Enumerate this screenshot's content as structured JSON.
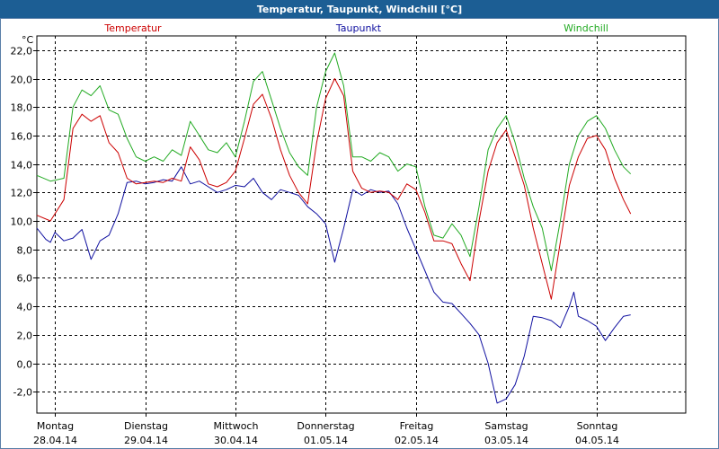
{
  "title": "Temperatur, Taupunkt, Windchill [°C]",
  "chart_data": {
    "type": "line",
    "title": "Temperatur, Taupunkt, Windchill [°C]",
    "ylabel": "°C",
    "ylim": [
      -3.5,
      23
    ],
    "yticks": [
      -2,
      0,
      2,
      4,
      6,
      8,
      10,
      12,
      14,
      16,
      18,
      20,
      22
    ],
    "ytick_labels": [
      "-2,0",
      "0,0",
      "2,0",
      "4,0",
      "6,0",
      "8,0",
      "10,0",
      "12,0",
      "14,0",
      "16,0",
      "18,0",
      "20,0",
      "22,0"
    ],
    "xlim": [
      -0.2,
      6.99
    ],
    "days": [
      {
        "weekday": "Montag",
        "date": "28.04.14",
        "x": 0
      },
      {
        "weekday": "Dienstag",
        "date": "29.04.14",
        "x": 1
      },
      {
        "weekday": "Mittwoch",
        "date": "30.04.14",
        "x": 2
      },
      {
        "weekday": "Donnerstag",
        "date": "01.05.14",
        "x": 3
      },
      {
        "weekday": "Freitag",
        "date": "02.05.14",
        "x": 4
      },
      {
        "weekday": "Samstag",
        "date": "03.05.14",
        "x": 5
      },
      {
        "weekday": "Sonntag",
        "date": "04.05.14",
        "x": 6
      }
    ],
    "series": [
      {
        "name": "Temperatur",
        "color": "#cc0000",
        "points": [
          [
            -0.2,
            10.4
          ],
          [
            -0.05,
            10.0
          ],
          [
            0.1,
            11.5
          ],
          [
            0.2,
            16.5
          ],
          [
            0.3,
            17.5
          ],
          [
            0.4,
            17.0
          ],
          [
            0.5,
            17.4
          ],
          [
            0.6,
            15.5
          ],
          [
            0.7,
            14.8
          ],
          [
            0.8,
            13.0
          ],
          [
            0.9,
            12.6
          ],
          [
            1.0,
            12.7
          ],
          [
            1.1,
            12.8
          ],
          [
            1.2,
            12.7
          ],
          [
            1.3,
            13.0
          ],
          [
            1.4,
            12.8
          ],
          [
            1.5,
            15.2
          ],
          [
            1.6,
            14.3
          ],
          [
            1.7,
            12.6
          ],
          [
            1.8,
            12.4
          ],
          [
            1.9,
            12.7
          ],
          [
            2.0,
            13.5
          ],
          [
            2.1,
            15.8
          ],
          [
            2.2,
            18.2
          ],
          [
            2.3,
            18.9
          ],
          [
            2.4,
            17.2
          ],
          [
            2.5,
            15.0
          ],
          [
            2.6,
            13.2
          ],
          [
            2.7,
            12.0
          ],
          [
            2.8,
            11.2
          ],
          [
            2.9,
            15.5
          ],
          [
            3.0,
            18.6
          ],
          [
            3.1,
            20.0
          ],
          [
            3.2,
            18.8
          ],
          [
            3.3,
            13.5
          ],
          [
            3.4,
            12.3
          ],
          [
            3.5,
            12.0
          ],
          [
            3.6,
            12.1
          ],
          [
            3.7,
            12.0
          ],
          [
            3.8,
            11.5
          ],
          [
            3.9,
            12.6
          ],
          [
            4.0,
            12.2
          ],
          [
            4.1,
            10.6
          ],
          [
            4.2,
            8.6
          ],
          [
            4.3,
            8.6
          ],
          [
            4.4,
            8.4
          ],
          [
            4.5,
            7.0
          ],
          [
            4.6,
            5.8
          ],
          [
            4.7,
            10.0
          ],
          [
            4.8,
            13.5
          ],
          [
            4.9,
            15.5
          ],
          [
            5.0,
            16.4
          ],
          [
            5.1,
            14.5
          ],
          [
            5.2,
            12.5
          ],
          [
            5.3,
            9.5
          ],
          [
            5.4,
            7.0
          ],
          [
            5.5,
            4.5
          ],
          [
            5.6,
            8.5
          ],
          [
            5.7,
            12.5
          ],
          [
            5.8,
            14.5
          ],
          [
            5.9,
            15.8
          ],
          [
            6.0,
            16.0
          ],
          [
            6.1,
            15.0
          ],
          [
            6.2,
            13.0
          ],
          [
            6.3,
            11.5
          ],
          [
            6.38,
            10.5
          ]
        ]
      },
      {
        "name": "Taupunkt",
        "color": "#1010a0",
        "points": [
          [
            -0.2,
            9.5
          ],
          [
            -0.1,
            8.7
          ],
          [
            -0.05,
            8.5
          ],
          [
            0.0,
            9.2
          ],
          [
            0.1,
            8.6
          ],
          [
            0.2,
            8.8
          ],
          [
            0.3,
            9.4
          ],
          [
            0.4,
            7.3
          ],
          [
            0.5,
            8.6
          ],
          [
            0.6,
            9.0
          ],
          [
            0.7,
            10.5
          ],
          [
            0.8,
            12.7
          ],
          [
            0.9,
            12.8
          ],
          [
            1.0,
            12.6
          ],
          [
            1.1,
            12.7
          ],
          [
            1.2,
            12.9
          ],
          [
            1.3,
            12.8
          ],
          [
            1.4,
            13.8
          ],
          [
            1.5,
            12.6
          ],
          [
            1.6,
            12.8
          ],
          [
            1.7,
            12.4
          ],
          [
            1.8,
            12.0
          ],
          [
            1.9,
            12.2
          ],
          [
            2.0,
            12.5
          ],
          [
            2.1,
            12.4
          ],
          [
            2.2,
            13.0
          ],
          [
            2.3,
            12.0
          ],
          [
            2.4,
            11.5
          ],
          [
            2.5,
            12.2
          ],
          [
            2.6,
            12.0
          ],
          [
            2.7,
            11.8
          ],
          [
            2.8,
            11.0
          ],
          [
            2.9,
            10.5
          ],
          [
            3.0,
            9.8
          ],
          [
            3.1,
            7.1
          ],
          [
            3.2,
            9.5
          ],
          [
            3.3,
            12.2
          ],
          [
            3.4,
            11.8
          ],
          [
            3.5,
            12.2
          ],
          [
            3.6,
            12.0
          ],
          [
            3.7,
            12.1
          ],
          [
            3.8,
            11.2
          ],
          [
            3.9,
            9.5
          ],
          [
            4.0,
            8.0
          ],
          [
            4.1,
            6.5
          ],
          [
            4.2,
            5.0
          ],
          [
            4.3,
            4.3
          ],
          [
            4.4,
            4.2
          ],
          [
            4.5,
            3.5
          ],
          [
            4.6,
            2.8
          ],
          [
            4.7,
            2.0
          ],
          [
            4.8,
            0.0
          ],
          [
            4.9,
            -2.8
          ],
          [
            5.0,
            -2.5
          ],
          [
            5.1,
            -1.5
          ],
          [
            5.2,
            0.5
          ],
          [
            5.3,
            3.3
          ],
          [
            5.4,
            3.2
          ],
          [
            5.5,
            3.0
          ],
          [
            5.6,
            2.5
          ],
          [
            5.7,
            4.0
          ],
          [
            5.75,
            5.0
          ],
          [
            5.8,
            3.3
          ],
          [
            5.9,
            3.0
          ],
          [
            6.0,
            2.6
          ],
          [
            6.1,
            1.6
          ],
          [
            6.2,
            2.5
          ],
          [
            6.3,
            3.3
          ],
          [
            6.38,
            3.4
          ]
        ]
      },
      {
        "name": "Windchill",
        "color": "#22aa22",
        "points": [
          [
            -0.2,
            13.2
          ],
          [
            -0.05,
            12.8
          ],
          [
            0.1,
            13.0
          ],
          [
            0.2,
            18.0
          ],
          [
            0.3,
            19.2
          ],
          [
            0.4,
            18.8
          ],
          [
            0.5,
            19.5
          ],
          [
            0.6,
            17.8
          ],
          [
            0.7,
            17.5
          ],
          [
            0.8,
            15.8
          ],
          [
            0.9,
            14.5
          ],
          [
            1.0,
            14.2
          ],
          [
            1.1,
            14.5
          ],
          [
            1.2,
            14.2
          ],
          [
            1.3,
            15.0
          ],
          [
            1.4,
            14.6
          ],
          [
            1.5,
            17.0
          ],
          [
            1.6,
            16.0
          ],
          [
            1.7,
            15.0
          ],
          [
            1.8,
            14.8
          ],
          [
            1.9,
            15.5
          ],
          [
            2.0,
            14.5
          ],
          [
            2.1,
            17.0
          ],
          [
            2.2,
            19.8
          ],
          [
            2.3,
            20.5
          ],
          [
            2.4,
            18.5
          ],
          [
            2.5,
            16.5
          ],
          [
            2.6,
            14.8
          ],
          [
            2.7,
            13.8
          ],
          [
            2.8,
            13.2
          ],
          [
            2.9,
            18.0
          ],
          [
            3.0,
            20.5
          ],
          [
            3.1,
            21.8
          ],
          [
            3.2,
            19.5
          ],
          [
            3.3,
            14.5
          ],
          [
            3.4,
            14.5
          ],
          [
            3.5,
            14.2
          ],
          [
            3.6,
            14.8
          ],
          [
            3.7,
            14.5
          ],
          [
            3.8,
            13.5
          ],
          [
            3.9,
            14.0
          ],
          [
            4.0,
            13.8
          ],
          [
            4.1,
            11.0
          ],
          [
            4.2,
            9.0
          ],
          [
            4.3,
            8.8
          ],
          [
            4.4,
            9.8
          ],
          [
            4.5,
            9.0
          ],
          [
            4.6,
            7.5
          ],
          [
            4.7,
            11.0
          ],
          [
            4.8,
            15.0
          ],
          [
            4.9,
            16.5
          ],
          [
            5.0,
            17.4
          ],
          [
            5.1,
            15.5
          ],
          [
            5.2,
            13.0
          ],
          [
            5.3,
            11.0
          ],
          [
            5.4,
            9.5
          ],
          [
            5.5,
            6.5
          ],
          [
            5.6,
            10.0
          ],
          [
            5.7,
            14.0
          ],
          [
            5.8,
            16.0
          ],
          [
            5.9,
            17.0
          ],
          [
            6.0,
            17.4
          ],
          [
            6.1,
            16.5
          ],
          [
            6.2,
            15.0
          ],
          [
            6.3,
            13.8
          ],
          [
            6.38,
            13.3
          ]
        ]
      }
    ]
  }
}
